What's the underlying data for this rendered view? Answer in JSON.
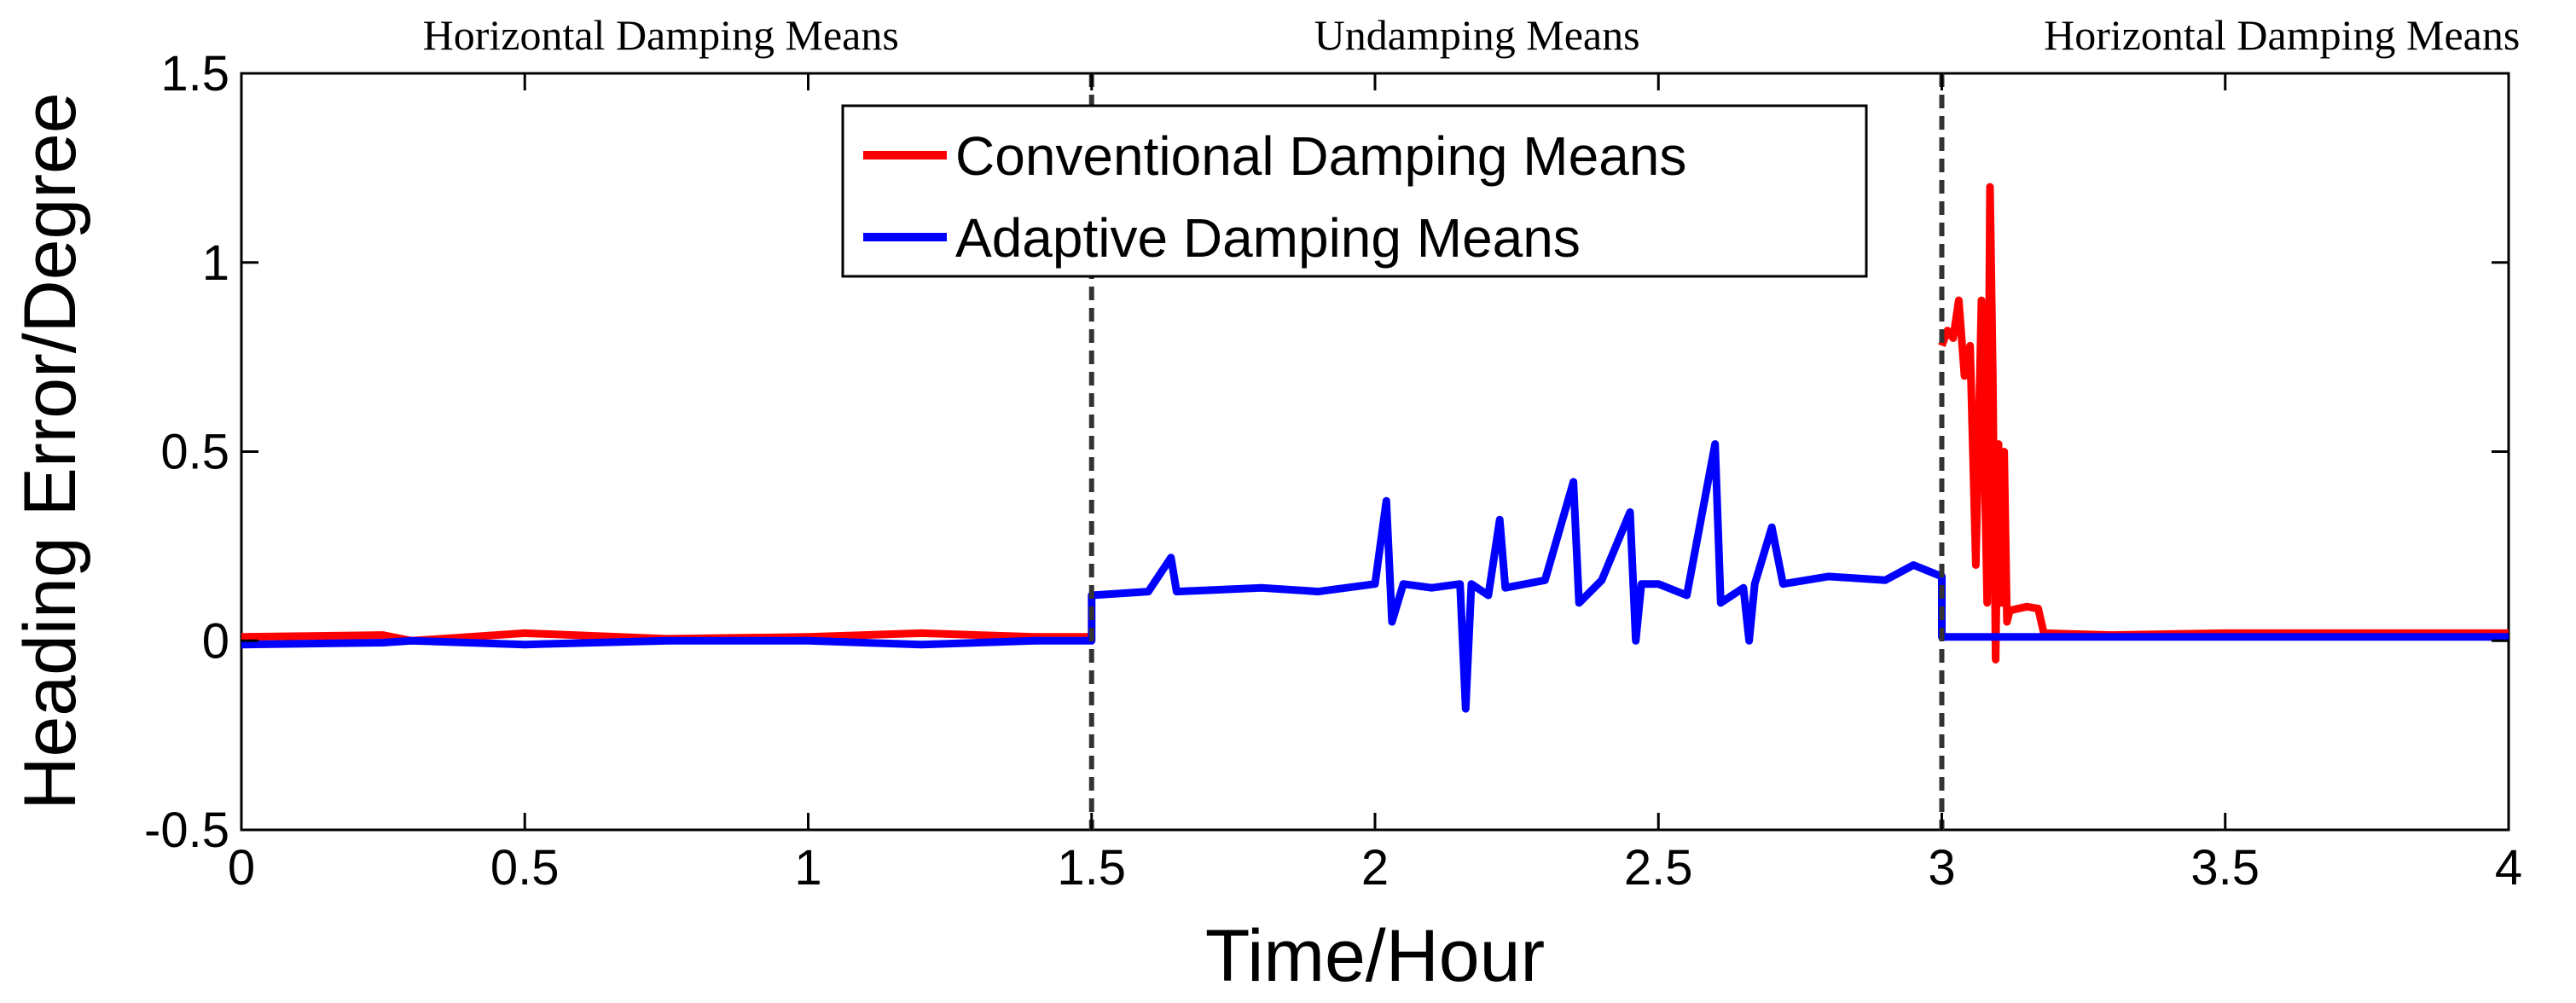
{
  "chart_data": {
    "type": "line",
    "title": "",
    "xlabel": "Time/Hour",
    "ylabel": "Heading Error/Degree",
    "xlim": [
      0,
      4
    ],
    "ylim": [
      -0.5,
      1.5
    ],
    "x_ticks": [
      "0",
      "0.5",
      "1",
      "1.5",
      "2",
      "2.5",
      "3",
      "3.5",
      "4"
    ],
    "y_ticks": [
      "1.5",
      "1",
      "0.5",
      "0",
      "-0.5"
    ],
    "grid": false,
    "legend_position": "top-center",
    "region_labels": [
      {
        "text": "Horizontal Damping Means",
        "x_center": 0.74
      },
      {
        "text": "Undamping Means",
        "x_center": 2.18
      },
      {
        "text": "Horizontal Damping Means",
        "x_center": 3.6
      }
    ],
    "dividers": [
      1.5,
      3.0
    ],
    "series": [
      {
        "name": "Conventional Damping Means",
        "color": "#ff0000",
        "segments": [
          [
            [
              0,
              0.01
            ],
            [
              0.25,
              0.015
            ],
            [
              0.3,
              0.0
            ],
            [
              0.5,
              0.02
            ],
            [
              0.75,
              0.005
            ],
            [
              1.0,
              0.01
            ],
            [
              1.2,
              0.02
            ],
            [
              1.4,
              0.01
            ],
            [
              1.5,
              0.01
            ]
          ],
          [
            [
              3.0,
              0.78
            ],
            [
              3.01,
              0.82
            ],
            [
              3.02,
              0.8
            ],
            [
              3.03,
              0.9
            ],
            [
              3.04,
              0.7
            ],
            [
              3.05,
              0.78
            ],
            [
              3.06,
              0.2
            ],
            [
              3.07,
              0.9
            ],
            [
              3.08,
              0.1
            ],
            [
              3.085,
              1.2
            ],
            [
              3.09,
              0.7
            ],
            [
              3.095,
              -0.05
            ],
            [
              3.1,
              0.52
            ],
            [
              3.105,
              0.1
            ],
            [
              3.11,
              0.5
            ],
            [
              3.115,
              0.05
            ],
            [
              3.12,
              0.08
            ],
            [
              3.15,
              0.09
            ],
            [
              3.17,
              0.085
            ],
            [
              3.18,
              0.02
            ],
            [
              3.3,
              0.015
            ],
            [
              3.5,
              0.02
            ],
            [
              3.7,
              0.02
            ],
            [
              4.0,
              0.02
            ]
          ]
        ]
      },
      {
        "name": "Adaptive Damping Means",
        "color": "#0000ff",
        "segments": [
          [
            [
              0,
              -0.01
            ],
            [
              0.25,
              -0.005
            ],
            [
              0.3,
              0.0
            ],
            [
              0.5,
              -0.01
            ],
            [
              0.75,
              0.0
            ],
            [
              1.0,
              0.0
            ],
            [
              1.2,
              -0.01
            ],
            [
              1.4,
              0.0
            ],
            [
              1.5,
              0.0
            ],
            [
              1.5,
              0.12
            ],
            [
              1.6,
              0.13
            ],
            [
              1.64,
              0.22
            ],
            [
              1.65,
              0.13
            ],
            [
              1.8,
              0.14
            ],
            [
              1.9,
              0.13
            ],
            [
              2.0,
              0.15
            ],
            [
              2.02,
              0.37
            ],
            [
              2.03,
              0.05
            ],
            [
              2.05,
              0.15
            ],
            [
              2.1,
              0.14
            ],
            [
              2.15,
              0.15
            ],
            [
              2.16,
              -0.18
            ],
            [
              2.17,
              0.15
            ],
            [
              2.2,
              0.12
            ],
            [
              2.22,
              0.32
            ],
            [
              2.23,
              0.14
            ],
            [
              2.3,
              0.16
            ],
            [
              2.35,
              0.42
            ],
            [
              2.36,
              0.1
            ],
            [
              2.4,
              0.16
            ],
            [
              2.45,
              0.34
            ],
            [
              2.46,
              0.0
            ],
            [
              2.47,
              0.15
            ],
            [
              2.5,
              0.15
            ],
            [
              2.55,
              0.12
            ],
            [
              2.6,
              0.52
            ],
            [
              2.61,
              0.1
            ],
            [
              2.65,
              0.14
            ],
            [
              2.66,
              0.0
            ],
            [
              2.67,
              0.15
            ],
            [
              2.7,
              0.3
            ],
            [
              2.72,
              0.15
            ],
            [
              2.8,
              0.17
            ],
            [
              2.9,
              0.16
            ],
            [
              2.95,
              0.2
            ],
            [
              3.0,
              0.17
            ],
            [
              3.0,
              0.01
            ],
            [
              3.1,
              0.01
            ],
            [
              3.3,
              0.01
            ],
            [
              3.5,
              0.01
            ],
            [
              3.7,
              0.01
            ],
            [
              4.0,
              0.01
            ]
          ]
        ]
      }
    ]
  }
}
